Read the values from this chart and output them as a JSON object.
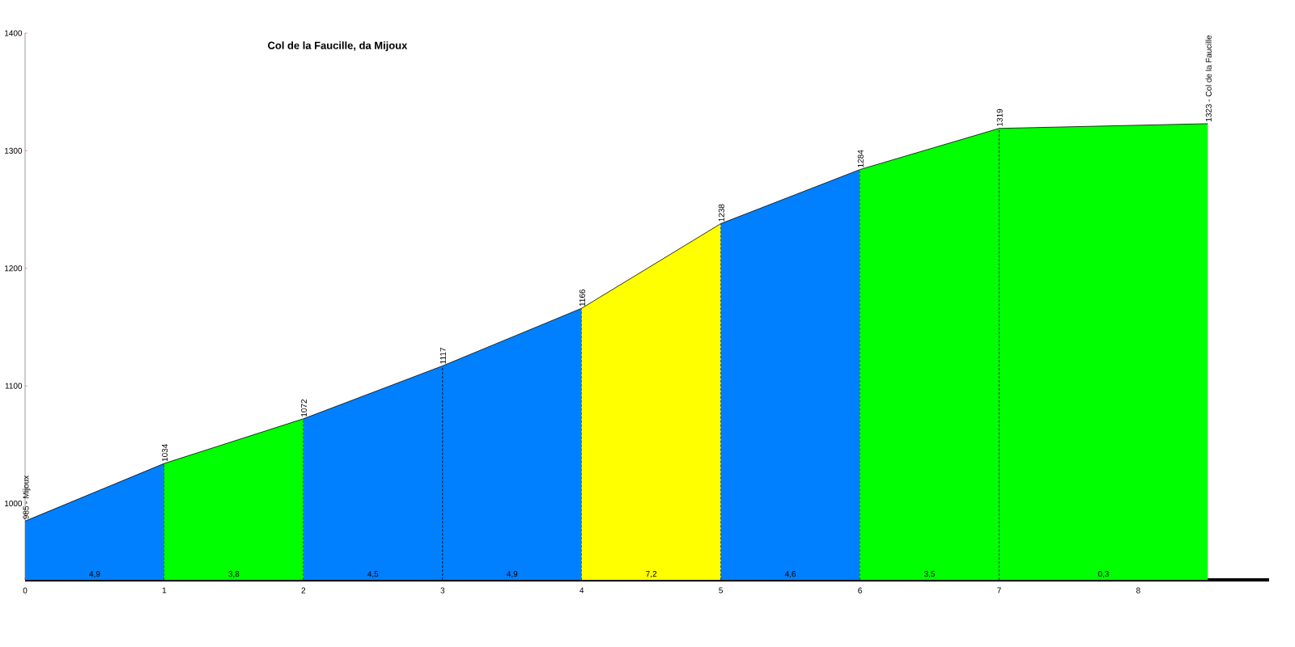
{
  "chart_data": {
    "type": "area",
    "title": "Col de la Faucille, da Mijoux",
    "series": [
      {
        "x": [
          0,
          1
        ],
        "values": [
          985,
          1034
        ],
        "color": "#0080ff",
        "value_labels": [
          "985 - Mijoux",
          "1034"
        ]
      },
      {
        "x": [
          1,
          2
        ],
        "values": [
          1034,
          1072
        ],
        "color": "#00ff00",
        "value_labels": [
          null,
          "1072"
        ]
      },
      {
        "x": [
          2,
          3,
          4
        ],
        "values": [
          1072,
          1117,
          1166
        ],
        "color": "#0080ff",
        "value_labels": [
          null,
          "1117",
          "1166"
        ]
      },
      {
        "x": [
          4,
          5
        ],
        "values": [
          1166,
          1238
        ],
        "color": "#ffff00",
        "value_labels": [
          null,
          "1238"
        ]
      },
      {
        "x": [
          5,
          6
        ],
        "values": [
          1238,
          1284
        ],
        "color": "#0080ff",
        "value_labels": [
          null,
          "1284"
        ]
      },
      {
        "x": [
          6,
          7,
          8.5
        ],
        "values": [
          1284,
          1319,
          1323
        ],
        "color": "#00ff00",
        "value_labels": [
          null,
          "1319",
          "1323 - Col de la Faucille"
        ]
      }
    ],
    "annotations": [
      "4,9",
      "3,8",
      "4,5",
      "4,9",
      "7,2",
      "4,6",
      "3,5",
      "0,3"
    ],
    "xlim": [
      0,
      8.94
    ],
    "ylim": [
      935,
      1400
    ],
    "xticks": [
      0,
      1,
      2,
      3,
      4,
      5,
      6,
      7,
      8
    ],
    "yticks": [
      1000,
      1100,
      1200,
      1300,
      1400
    ],
    "grid": "x"
  }
}
